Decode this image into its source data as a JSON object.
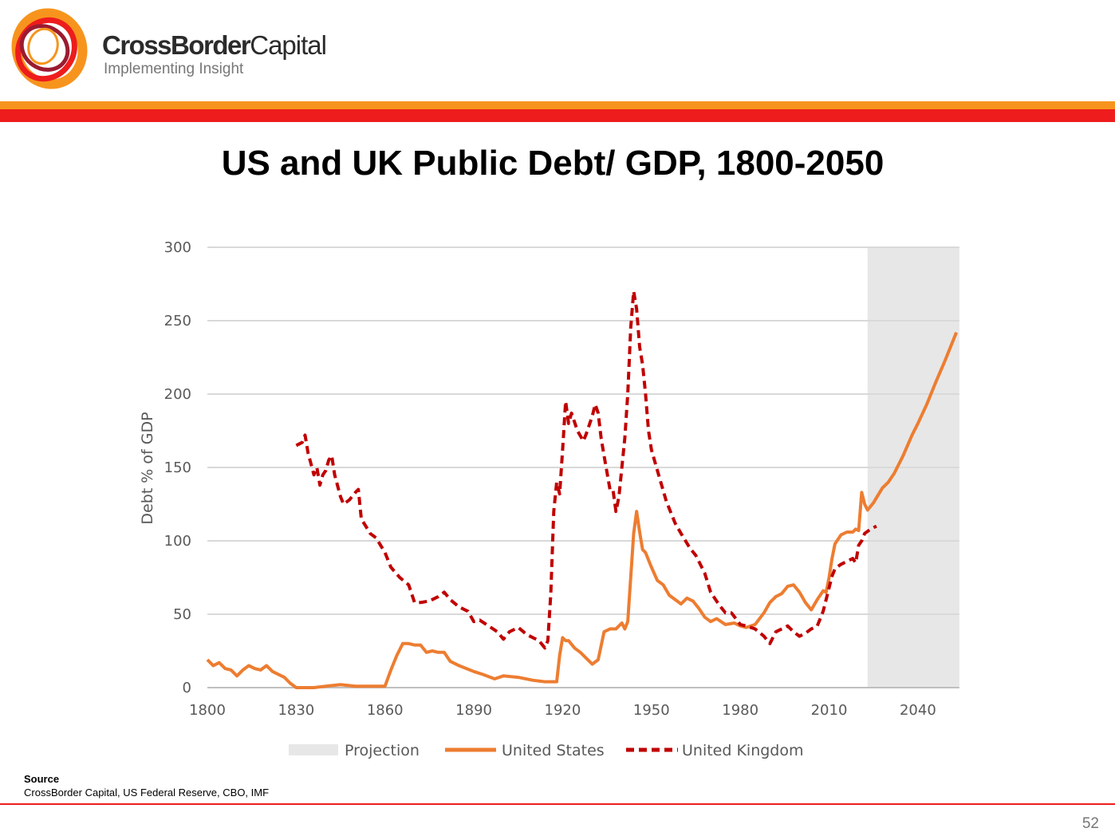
{
  "brand": {
    "name_bold": "CrossBorder",
    "name_light": "Capital",
    "tagline": "Implementing Insight",
    "logo_icon": "crossborder-swirl-logo"
  },
  "title": "US and UK Public Debt/ GDP, 1800-2050",
  "source": {
    "label": "Source",
    "text": "CrossBorder Capital, US Federal Reserve, CBO, IMF"
  },
  "page_number": "52",
  "colors": {
    "orange": "#f7941d",
    "red": "#ee1c1c",
    "us_series": "#ed7d31",
    "uk_series": "#c00000",
    "projection": "#e7e7e7"
  },
  "chart_data": {
    "type": "line",
    "title": "US and UK Public Debt/ GDP, 1800-2050",
    "xlabel": "",
    "ylabel": "Debt % of GDP",
    "xlim": [
      1800,
      2050
    ],
    "ylim": [
      0,
      300
    ],
    "xticks": [
      "1800",
      "1830",
      "1860",
      "1890",
      "1920",
      "1950",
      "1980",
      "2010",
      "2040"
    ],
    "yticks": [
      "0",
      "50",
      "100",
      "150",
      "200",
      "250",
      "300"
    ],
    "grid": "horizontal",
    "legend_position": "bottom",
    "projection": {
      "name": "Projection",
      "x_start": 2023,
      "x_end": 2054
    },
    "series": [
      {
        "name": "United States",
        "style": "solid",
        "x": [
          1800,
          1802,
          1804,
          1806,
          1808,
          1810,
          1812,
          1814,
          1816,
          1818,
          1820,
          1822,
          1824,
          1826,
          1828,
          1830,
          1832,
          1834,
          1836,
          1840,
          1845,
          1850,
          1855,
          1858,
          1860,
          1862,
          1864,
          1866,
          1868,
          1870,
          1872,
          1874,
          1876,
          1878,
          1880,
          1882,
          1885,
          1890,
          1893,
          1897,
          1900,
          1905,
          1910,
          1914,
          1916,
          1917,
          1918,
          1919,
          1920,
          1921,
          1922,
          1924,
          1926,
          1928,
          1930,
          1932,
          1934,
          1936,
          1938,
          1940,
          1941,
          1942,
          1943,
          1944,
          1945,
          1946,
          1947,
          1948,
          1950,
          1952,
          1954,
          1956,
          1958,
          1960,
          1962,
          1964,
          1966,
          1968,
          1970,
          1972,
          1975,
          1978,
          1980,
          1982,
          1985,
          1988,
          1990,
          1992,
          1994,
          1996,
          1998,
          2000,
          2002,
          2004,
          2006,
          2008,
          2009,
          2010,
          2011,
          2012,
          2014,
          2016,
          2018,
          2019,
          2020,
          2021,
          2022,
          2023,
          2025,
          2028,
          2030,
          2032,
          2035,
          2038,
          2040,
          2043,
          2046,
          2049,
          2051,
          2053
        ],
        "y": [
          19,
          15,
          17,
          13,
          12,
          8,
          12,
          15,
          13,
          12,
          15,
          11,
          9,
          7,
          3,
          0,
          0,
          0,
          0,
          1,
          2,
          1,
          1,
          1,
          1,
          12,
          22,
          30,
          30,
          29,
          29,
          24,
          25,
          24,
          24,
          18,
          15,
          11,
          9,
          6,
          8,
          7,
          5,
          4,
          4,
          4,
          4,
          22,
          34,
          32,
          32,
          27,
          24,
          20,
          16,
          19,
          38,
          40,
          40,
          44,
          40,
          45,
          75,
          105,
          120,
          106,
          94,
          92,
          82,
          73,
          70,
          63,
          60,
          57,
          61,
          59,
          54,
          48,
          45,
          47,
          43,
          44,
          42,
          41,
          43,
          51,
          58,
          62,
          64,
          69,
          70,
          65,
          58,
          53,
          60,
          66,
          65,
          75,
          88,
          98,
          104,
          106,
          106,
          108,
          107,
          133,
          125,
          121,
          126,
          136,
          140,
          146,
          158,
          172,
          180,
          193,
          208,
          222,
          232,
          242
        ]
      },
      {
        "name": "United Kingdom",
        "style": "dashed",
        "x": [
          1830,
          1832,
          1833,
          1834,
          1836,
          1837,
          1838,
          1839,
          1840,
          1841,
          1842,
          1843,
          1845,
          1846,
          1848,
          1850,
          1851,
          1852,
          1855,
          1857,
          1860,
          1862,
          1865,
          1868,
          1870,
          1872,
          1875,
          1878,
          1880,
          1882,
          1885,
          1888,
          1890,
          1892,
          1895,
          1898,
          1900,
          1902,
          1905,
          1908,
          1910,
          1912,
          1914,
          1915,
          1916,
          1917,
          1918,
          1919,
          1920,
          1921,
          1922,
          1923,
          1925,
          1927,
          1928,
          1930,
          1931,
          1932,
          1933,
          1934,
          1936,
          1937,
          1938,
          1939,
          1940,
          1941,
          1942,
          1943,
          1944,
          1945,
          1946,
          1947,
          1948,
          1949,
          1950,
          1952,
          1955,
          1958,
          1960,
          1963,
          1965,
          1968,
          1970,
          1973,
          1975,
          1977,
          1980,
          1982,
          1985,
          1988,
          1990,
          1992,
          1994,
          1996,
          1998,
          2000,
          2002,
          2004,
          2006,
          2008,
          2009,
          2010,
          2011,
          2012,
          2014,
          2016,
          2018,
          2019,
          2020,
          2021,
          2022,
          2024,
          2026
        ],
        "y": [
          165,
          167,
          172,
          160,
          145,
          150,
          138,
          145,
          148,
          155,
          158,
          145,
          130,
          125,
          128,
          133,
          135,
          115,
          105,
          102,
          92,
          82,
          75,
          70,
          58,
          58,
          59,
          62,
          65,
          60,
          55,
          52,
          45,
          46,
          42,
          38,
          33,
          38,
          41,
          36,
          34,
          32,
          27,
          32,
          64,
          120,
          140,
          132,
          162,
          195,
          180,
          187,
          175,
          168,
          173,
          185,
          193,
          187,
          170,
          158,
          135,
          135,
          120,
          130,
          150,
          170,
          200,
          245,
          270,
          258,
          232,
          220,
          200,
          175,
          162,
          148,
          127,
          112,
          105,
          95,
          90,
          78,
          65,
          56,
          51,
          51,
          43,
          42,
          40,
          35,
          30,
          38,
          40,
          42,
          38,
          35,
          37,
          40,
          42,
          52,
          60,
          68,
          76,
          81,
          84,
          86,
          88,
          85,
          97,
          100,
          105,
          108,
          110
        ]
      }
    ]
  }
}
